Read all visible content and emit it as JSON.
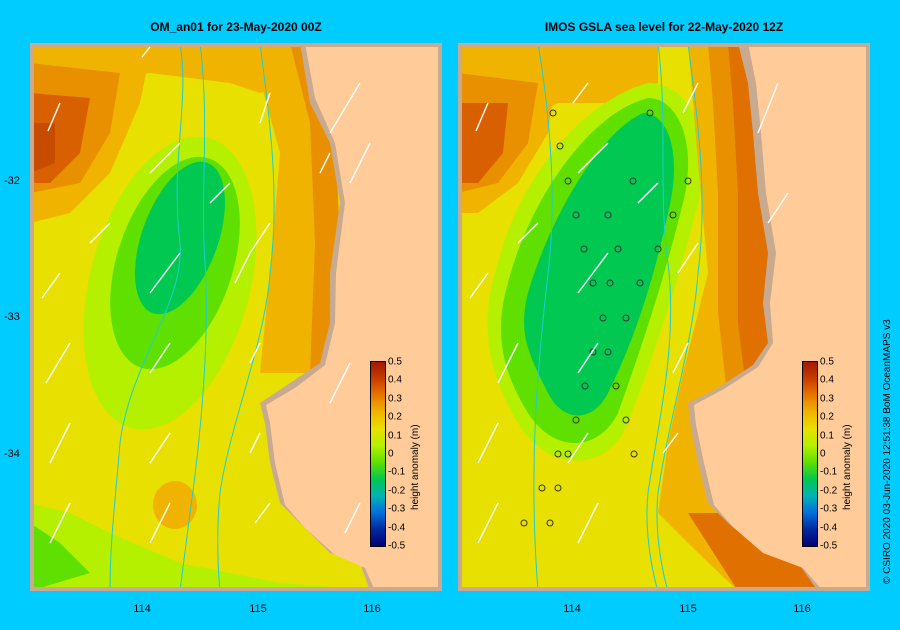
{
  "panels": [
    {
      "title": "OM_an01  for 23-May-2020 00Z"
    },
    {
      "title": "IMOS GSLA sea level  for 22-May-2020 12Z"
    }
  ],
  "axes": {
    "lon_ticks": [
      "114",
      "115",
      "116"
    ],
    "lat_ticks": [
      "-32",
      "-33",
      "-34"
    ]
  },
  "colorbar": {
    "title": "height anomaly (m)",
    "ticks": [
      "0.5",
      "0.4",
      "0.3",
      "0.2",
      "0.1",
      "0",
      "-0.1",
      "-0.2",
      "-0.3",
      "-0.4",
      "-0.5"
    ],
    "colors": [
      "#a01800",
      "#c83c00",
      "#e87800",
      "#f0b400",
      "#e8e000",
      "#b4f000",
      "#60e000",
      "#00c850",
      "#00b4b4",
      "#0070dc",
      "#0028a0",
      "#000078"
    ]
  },
  "credit": "© CSIRO 2020   03-Jun-2020 12:51:38 BoM OceanMAPS v3"
}
